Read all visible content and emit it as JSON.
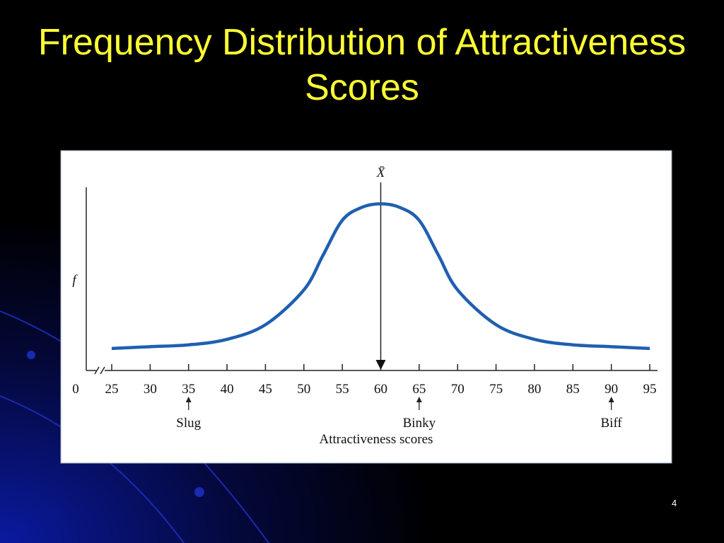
{
  "slide_number": "4",
  "chart_data": {
    "type": "line",
    "title": "Frequency Distribution of Attractiveness Scores",
    "x_label": "Attractiveness scores",
    "y_label": "f",
    "x": [
      25,
      30,
      35,
      40,
      45,
      50,
      52.5,
      55,
      57.5,
      60,
      62.5,
      65,
      67.5,
      70,
      75,
      80,
      85,
      90,
      95
    ],
    "series": [
      {
        "color": "#1f5fb0",
        "values": [
          12,
          13,
          14,
          17,
          25,
          44,
          63,
          82,
          89,
          91,
          89,
          82,
          63,
          44,
          25,
          17,
          14,
          13,
          12
        ]
      }
    ],
    "xlim": [
      25,
      95
    ],
    "ylim": [
      0,
      100
    ],
    "xticks": [
      0,
      25,
      30,
      35,
      40,
      45,
      50,
      55,
      60,
      65,
      70,
      75,
      80,
      85,
      90,
      95
    ],
    "axis_break": true,
    "mean_line": {
      "x": 60,
      "label": "X̄"
    },
    "annotations": [
      {
        "x": 35,
        "label": "Slug"
      },
      {
        "x": 65,
        "label": "Binky"
      },
      {
        "x": 90,
        "label": "Biff"
      }
    ]
  }
}
